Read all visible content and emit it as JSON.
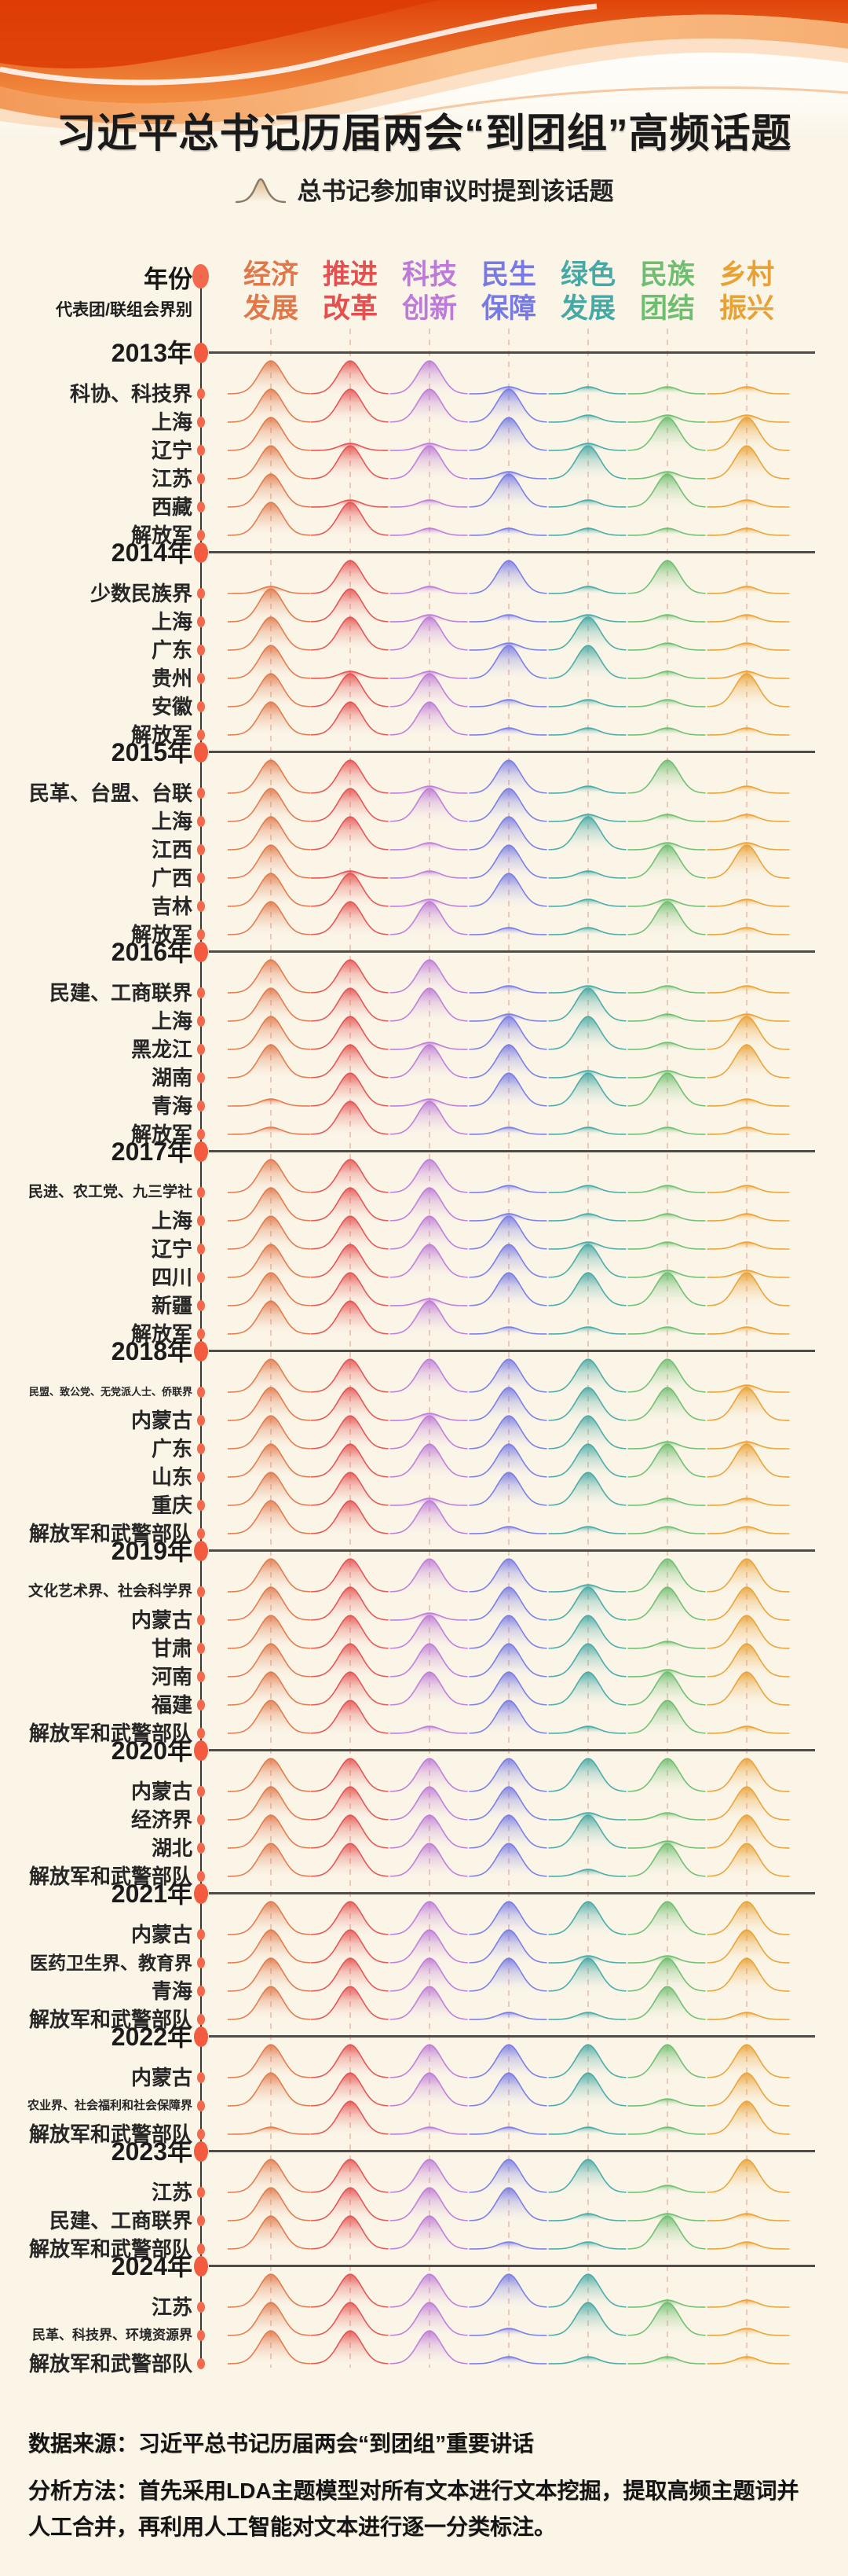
{
  "page": {
    "background": "#FBF5E8"
  },
  "title": "习近平总书记历届两会“到团组”高频话题",
  "legend": {
    "icon": "bell-curve-icon",
    "text": "总书记参加审议时提到该话题"
  },
  "axis_header": {
    "year": "年份",
    "group": "代表团/联组会界别"
  },
  "footer": {
    "source": "数据来源：习近平总书记历届两会“到团组”重要讲话",
    "method": "分析方法：首先采用LDA主题模型对所有文本进行文本挖掘，提取高频主题词并人工合并，再利用人工智能对文本进行逐一分类标注。"
  },
  "chart_data": {
    "type": "ridgeline",
    "encoding": "每行为一个代表团/界别，7列话题；值1=该次审议提到该话题(大峰)，值0=未突出提及(小波)",
    "legend": "总书记参加审议时提到该话题",
    "topics": [
      {
        "label": "经济发展",
        "lines": [
          "经济",
          "发展"
        ],
        "color": "#E0784A"
      },
      {
        "label": "推进改革",
        "lines": [
          "推进",
          "改革"
        ],
        "color": "#E45050"
      },
      {
        "label": "科技创新",
        "lines": [
          "科技",
          "创新"
        ],
        "color": "#BD7AD8"
      },
      {
        "label": "民生保障",
        "lines": [
          "民生",
          "保障"
        ],
        "color": "#777AE5"
      },
      {
        "label": "绿色发展",
        "lines": [
          "绿色",
          "发展"
        ],
        "color": "#46A9A5"
      },
      {
        "label": "民族团结",
        "lines": [
          "民族",
          "团结"
        ],
        "color": "#6DBE6F"
      },
      {
        "label": "乡村振兴",
        "lines": [
          "乡村",
          "振兴"
        ],
        "color": "#E9A134"
      }
    ],
    "years": [
      {
        "year": "2013年",
        "rows": [
          {
            "name": "科协、科技界",
            "values": [
              1,
              1,
              1,
              0,
              0,
              0,
              0
            ]
          },
          {
            "name": "上海",
            "values": [
              1,
              1,
              1,
              1,
              0,
              0,
              0
            ]
          },
          {
            "name": "辽宁",
            "values": [
              1,
              0,
              0,
              1,
              0,
              1,
              1
            ]
          },
          {
            "name": "江苏",
            "values": [
              1,
              1,
              1,
              0,
              1,
              0,
              1
            ]
          },
          {
            "name": "西藏",
            "values": [
              1,
              0,
              0,
              1,
              0,
              1,
              0
            ]
          },
          {
            "name": "解放军",
            "values": [
              1,
              1,
              0,
              0,
              0,
              0,
              0
            ]
          }
        ]
      },
      {
        "year": "2014年",
        "rows": [
          {
            "name": "少数民族界",
            "values": [
              0,
              1,
              0,
              1,
              0,
              1,
              0
            ]
          },
          {
            "name": "上海",
            "values": [
              1,
              1,
              0,
              0,
              0,
              0,
              0
            ]
          },
          {
            "name": "广东",
            "values": [
              1,
              1,
              1,
              0,
              1,
              0,
              0
            ]
          },
          {
            "name": "贵州",
            "values": [
              1,
              0,
              0,
              1,
              1,
              0,
              0
            ]
          },
          {
            "name": "安徽",
            "values": [
              1,
              1,
              1,
              0,
              0,
              0,
              1
            ]
          },
          {
            "name": "解放军",
            "values": [
              1,
              1,
              1,
              0,
              0,
              0,
              0
            ]
          }
        ]
      },
      {
        "year": "2015年",
        "rows": [
          {
            "name": "民革、台盟、台联",
            "values": [
              1,
              1,
              0,
              1,
              0,
              1,
              0
            ]
          },
          {
            "name": "上海",
            "values": [
              1,
              1,
              1,
              1,
              0,
              0,
              0
            ]
          },
          {
            "name": "江西",
            "values": [
              1,
              1,
              0,
              1,
              1,
              0,
              0
            ]
          },
          {
            "name": "广西",
            "values": [
              1,
              0,
              0,
              1,
              0,
              1,
              1
            ]
          },
          {
            "name": "吉林",
            "values": [
              1,
              1,
              0,
              1,
              0,
              0,
              0
            ]
          },
          {
            "name": "解放军",
            "values": [
              1,
              1,
              1,
              0,
              0,
              1,
              0
            ]
          }
        ]
      },
      {
        "year": "2016年",
        "rows": [
          {
            "name": "民建、工商联界",
            "values": [
              1,
              1,
              1,
              0,
              0,
              0,
              0
            ]
          },
          {
            "name": "上海",
            "values": [
              1,
              1,
              1,
              0,
              1,
              0,
              0
            ]
          },
          {
            "name": "黑龙江",
            "values": [
              1,
              1,
              0,
              1,
              1,
              0,
              1
            ]
          },
          {
            "name": "湖南",
            "values": [
              1,
              1,
              1,
              1,
              0,
              0,
              1
            ]
          },
          {
            "name": "青海",
            "values": [
              0,
              1,
              0,
              1,
              1,
              1,
              0
            ]
          },
          {
            "name": "解放军",
            "values": [
              0,
              1,
              1,
              0,
              0,
              0,
              0
            ]
          }
        ]
      },
      {
        "year": "2017年",
        "rows": [
          {
            "name": "民进、农工党、九三学社",
            "values": [
              1,
              1,
              1,
              0,
              0,
              0,
              0
            ]
          },
          {
            "name": "上海",
            "values": [
              1,
              1,
              1,
              0,
              0,
              0,
              0
            ]
          },
          {
            "name": "辽宁",
            "values": [
              1,
              1,
              1,
              1,
              0,
              0,
              0
            ]
          },
          {
            "name": "四川",
            "values": [
              1,
              1,
              1,
              1,
              1,
              0,
              0
            ]
          },
          {
            "name": "新疆",
            "values": [
              1,
              1,
              0,
              1,
              1,
              1,
              1
            ]
          },
          {
            "name": "解放军",
            "values": [
              1,
              1,
              1,
              0,
              0,
              0,
              0
            ]
          }
        ]
      },
      {
        "year": "2018年",
        "rows": [
          {
            "name": "民盟、致公党、无党派人士、侨联界",
            "values": [
              1,
              1,
              1,
              1,
              1,
              1,
              0
            ]
          },
          {
            "name": "内蒙古",
            "values": [
              1,
              1,
              0,
              1,
              1,
              1,
              1
            ]
          },
          {
            "name": "广东",
            "values": [
              1,
              1,
              1,
              1,
              1,
              0,
              0
            ]
          },
          {
            "name": "山东",
            "values": [
              1,
              1,
              1,
              1,
              1,
              1,
              1
            ]
          },
          {
            "name": "重庆",
            "values": [
              1,
              1,
              0,
              1,
              1,
              0,
              0
            ]
          },
          {
            "name": "解放军和武警部队",
            "values": [
              1,
              1,
              1,
              0,
              0,
              0,
              0
            ]
          }
        ]
      },
      {
        "year": "2019年",
        "rows": [
          {
            "name": "文化艺术界、社会科学界",
            "values": [
              1,
              1,
              1,
              1,
              0,
              1,
              1
            ]
          },
          {
            "name": "内蒙古",
            "values": [
              1,
              1,
              0,
              1,
              1,
              1,
              1
            ]
          },
          {
            "name": "甘肃",
            "values": [
              1,
              1,
              1,
              1,
              1,
              0,
              1
            ]
          },
          {
            "name": "河南",
            "values": [
              1,
              1,
              1,
              1,
              1,
              0,
              1
            ]
          },
          {
            "name": "福建",
            "values": [
              1,
              1,
              1,
              1,
              1,
              1,
              1
            ]
          },
          {
            "name": "解放军和武警部队",
            "values": [
              1,
              1,
              0,
              1,
              0,
              1,
              0
            ]
          }
        ]
      },
      {
        "year": "2020年",
        "rows": [
          {
            "name": "内蒙古",
            "values": [
              1,
              1,
              1,
              1,
              1,
              1,
              1
            ]
          },
          {
            "name": "经济界",
            "values": [
              1,
              1,
              1,
              1,
              0,
              0,
              1
            ]
          },
          {
            "name": "湖北",
            "values": [
              1,
              1,
              1,
              1,
              1,
              0,
              1
            ]
          },
          {
            "name": "解放军和武警部队",
            "values": [
              1,
              1,
              1,
              1,
              0,
              1,
              1
            ]
          }
        ]
      },
      {
        "year": "2021年",
        "rows": [
          {
            "name": "内蒙古",
            "values": [
              1,
              1,
              1,
              1,
              1,
              1,
              1
            ]
          },
          {
            "name": "医药卫生界、教育界",
            "values": [
              1,
              1,
              1,
              1,
              0,
              0,
              1
            ]
          },
          {
            "name": "青海",
            "values": [
              1,
              1,
              1,
              1,
              1,
              1,
              1
            ]
          },
          {
            "name": "解放军和武警部队",
            "values": [
              1,
              1,
              1,
              0,
              0,
              1,
              0
            ]
          }
        ]
      },
      {
        "year": "2022年",
        "rows": [
          {
            "name": "内蒙古",
            "values": [
              1,
              1,
              1,
              1,
              1,
              1,
              1
            ]
          },
          {
            "name": "农业界、社会福利和社会保障界",
            "values": [
              1,
              1,
              1,
              1,
              1,
              0,
              1
            ]
          },
          {
            "name": "解放军和武警部队",
            "values": [
              0,
              1,
              0,
              0,
              0,
              0,
              1
            ]
          }
        ]
      },
      {
        "year": "2023年",
        "rows": [
          {
            "name": "江苏",
            "values": [
              1,
              1,
              1,
              1,
              1,
              0,
              1
            ]
          },
          {
            "name": "民建、工商联界",
            "values": [
              1,
              1,
              1,
              1,
              0,
              0,
              0
            ]
          },
          {
            "name": "解放军和武警部队",
            "values": [
              1,
              1,
              1,
              0,
              0,
              1,
              0
            ]
          }
        ]
      },
      {
        "year": "2024年",
        "rows": [
          {
            "name": "江苏",
            "values": [
              1,
              1,
              1,
              1,
              1,
              0,
              0
            ]
          },
          {
            "name": "民革、科技界、环境资源界",
            "values": [
              1,
              1,
              1,
              0,
              1,
              1,
              0
            ]
          },
          {
            "name": "解放军和武警部队",
            "values": [
              1,
              1,
              1,
              0,
              0,
              0,
              0
            ]
          }
        ]
      }
    ]
  }
}
